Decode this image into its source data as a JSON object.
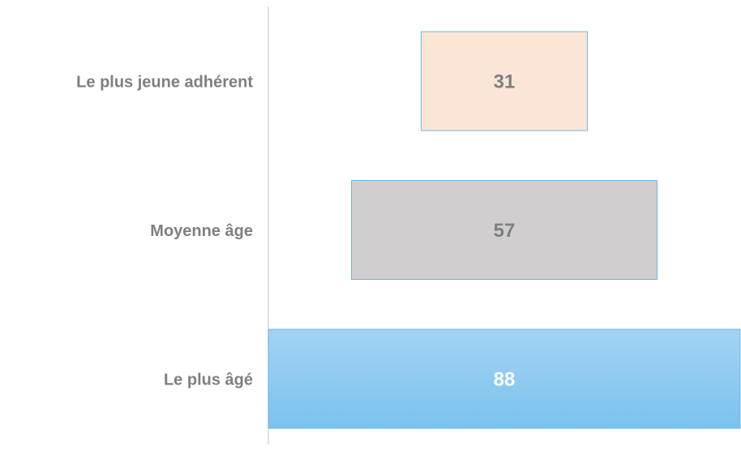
{
  "chart_data": {
    "type": "funnel",
    "categories": [
      "Le plus jeune adhérent",
      "Moyenne âge",
      "Le plus âgé"
    ],
    "values": [
      31,
      57,
      88
    ],
    "colors": [
      "#fbe5d6",
      "#d0cece",
      "#8ecaef"
    ],
    "label_colors": [
      "#7f7f7f",
      "#7f7f7f",
      "#ffffff"
    ]
  }
}
